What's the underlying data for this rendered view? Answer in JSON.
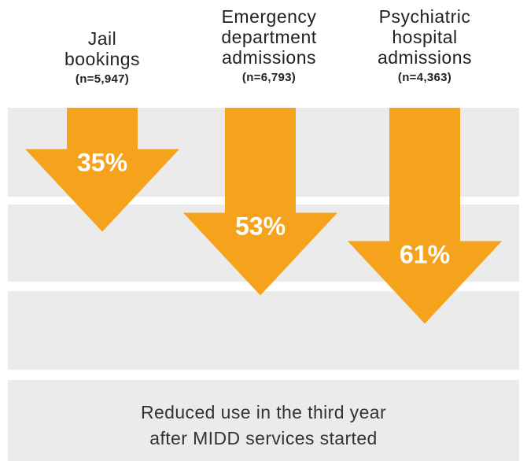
{
  "colors": {
    "arrow": "#f5a21c",
    "band": "#ebebeb",
    "label": "#ffffff"
  },
  "chart_data": {
    "type": "bar",
    "categories": [
      "Jail\nbookings",
      "Emergency\ndepartment\nadmissions",
      "Psychiatric\nhospital\nadmissions"
    ],
    "sample_sizes": [
      "(n=5,947)",
      "(n=6,793)",
      "(n=4,363)"
    ],
    "values": [
      35,
      53,
      61
    ],
    "value_labels": [
      "35%",
      "53%",
      "61%"
    ],
    "unit": "%",
    "footer": "Reduced use in the third year\nafter MIDD services started"
  }
}
